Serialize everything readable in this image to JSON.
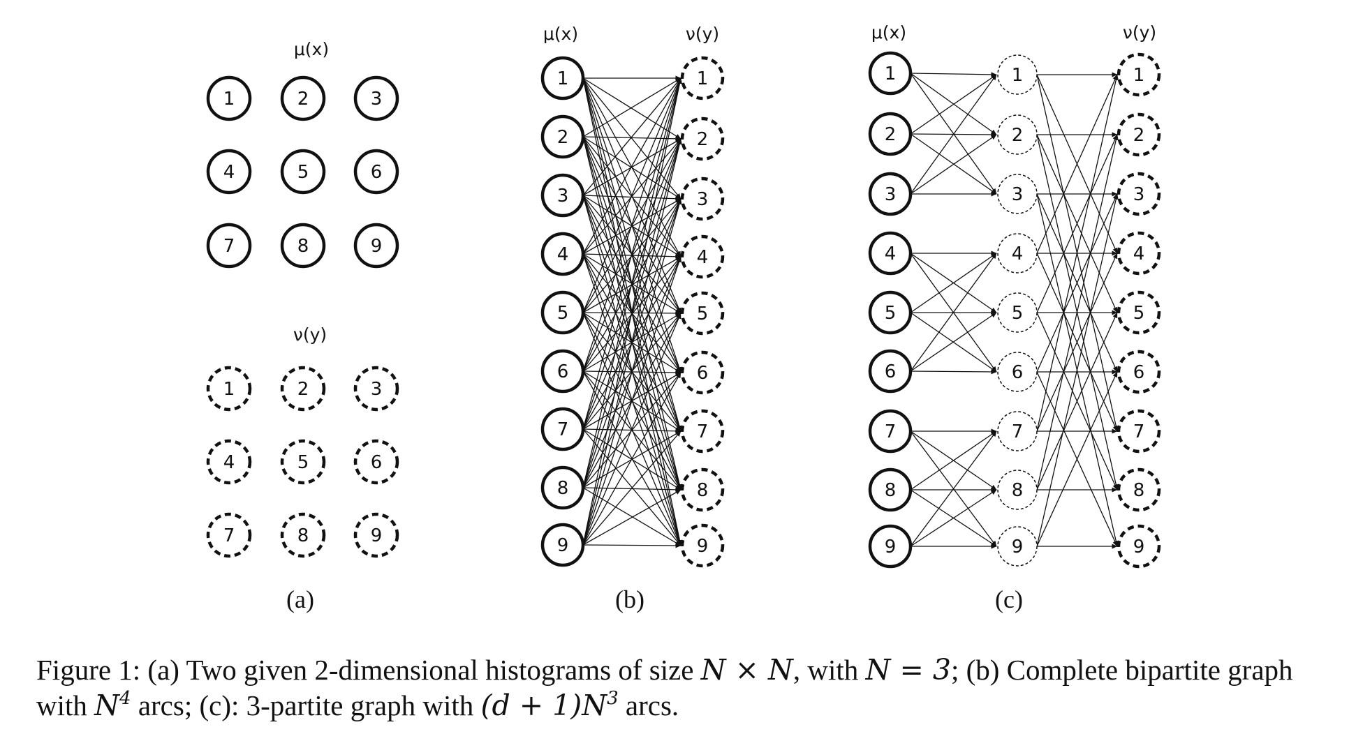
{
  "figure": {
    "panels": [
      {
        "id": "a",
        "label": "(a)",
        "mu_label": "μ(x)",
        "nu_label": "ν(y)",
        "mu_nodes": [
          "1",
          "2",
          "3",
          "4",
          "5",
          "6",
          "7",
          "8",
          "9"
        ],
        "nu_nodes": [
          "1",
          "2",
          "3",
          "4",
          "5",
          "6",
          "7",
          "8",
          "9"
        ]
      },
      {
        "id": "b",
        "label": "(b)",
        "mu_label": "μ(x)",
        "nu_label": "ν(y)",
        "left_nodes": [
          "1",
          "2",
          "3",
          "4",
          "5",
          "6",
          "7",
          "8",
          "9"
        ],
        "right_nodes": [
          "1",
          "2",
          "3",
          "4",
          "5",
          "6",
          "7",
          "8",
          "9"
        ]
      },
      {
        "id": "c",
        "label": "(c)",
        "mu_label": "μ(x)",
        "nu_label": "ν(y)",
        "left_nodes": [
          "1",
          "2",
          "3",
          "4",
          "5",
          "6",
          "7",
          "8",
          "9"
        ],
        "middle_nodes": [
          "1",
          "2",
          "3",
          "4",
          "5",
          "6",
          "7",
          "8",
          "9"
        ],
        "right_nodes": [
          "1",
          "2",
          "3",
          "4",
          "5",
          "6",
          "7",
          "8",
          "9"
        ]
      }
    ]
  },
  "caption": {
    "seg1": "Figure 1: (a) Two given 2-dimensional histograms of size ",
    "m1": "N × N",
    "seg2": ", with ",
    "m2": "N = 3",
    "seg3": "; (b) Complete bipartite graph with ",
    "m3_base": "N",
    "m3_sup": "4",
    "seg4": " arcs; (c): 3-partite graph with ",
    "m4_base": "(d + 1)N",
    "m4_sup": "3",
    "seg5": " arcs."
  }
}
